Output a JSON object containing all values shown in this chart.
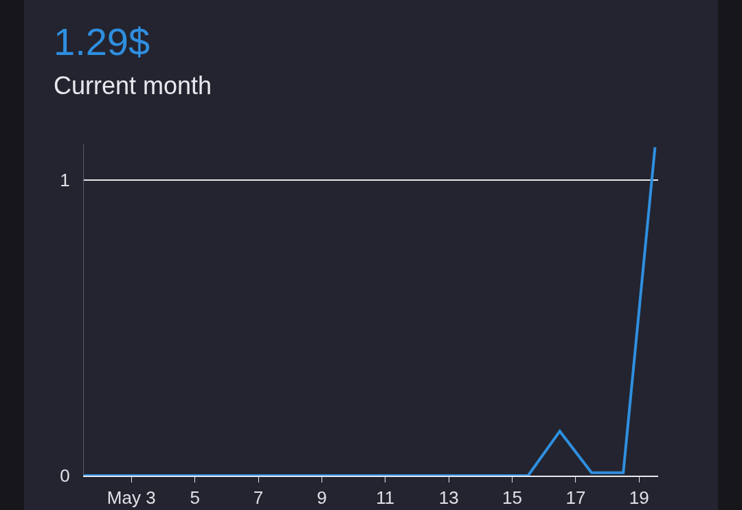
{
  "chart_data": {
    "type": "line",
    "title": "1.29$",
    "subtitle": "Current month",
    "x": [
      1.5,
      2.5,
      3.5,
      4.5,
      5.5,
      6.5,
      7.5,
      8.5,
      9.5,
      10.5,
      11.5,
      12.5,
      13.5,
      14.5,
      15.5,
      16.5,
      17.5,
      18.5,
      19.5
    ],
    "series": [
      {
        "color": "#2f8fe0",
        "values": [
          0,
          0,
          0,
          0,
          0,
          0,
          0,
          0,
          0,
          0,
          0,
          0,
          0,
          0,
          0,
          0.15,
          0.01,
          0.01,
          1.11
        ]
      }
    ],
    "xlim": [
      1.5,
      19.6
    ],
    "xticks": [
      {
        "value": 3,
        "label": "May 3"
      },
      5,
      7,
      9,
      11,
      13,
      15,
      17,
      19
    ],
    "ylim": [
      0,
      1.12
    ],
    "yticks": [
      0,
      1
    ],
    "grid": "y",
    "marker": "none",
    "line_style": "solid"
  }
}
